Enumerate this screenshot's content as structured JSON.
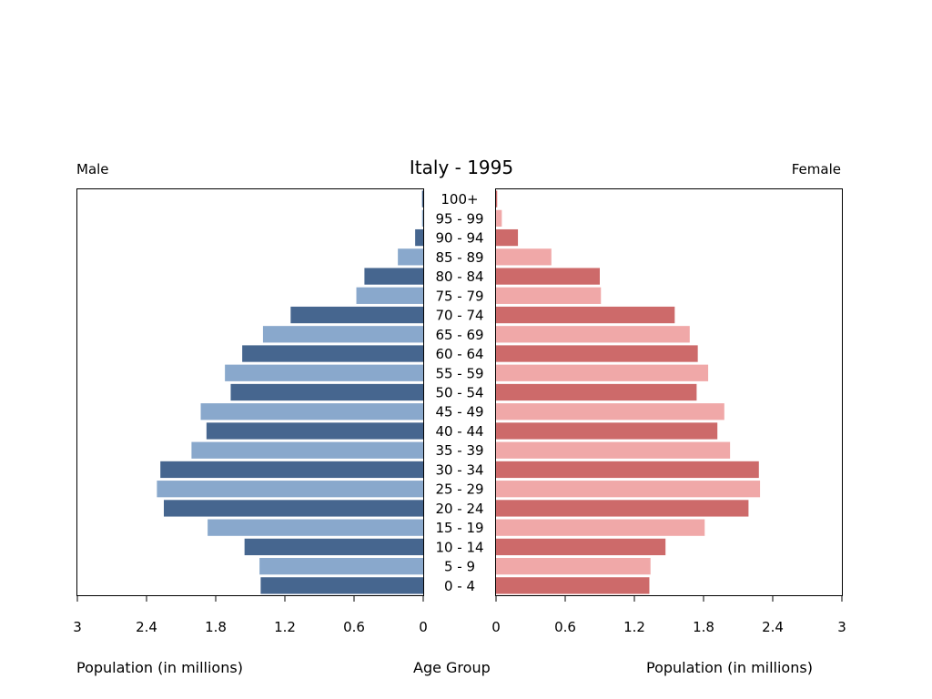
{
  "chart_data": {
    "type": "bar",
    "title": "Italy - 1995",
    "left_label": "Male",
    "right_label": "Female",
    "xlabel_left": "Population (in millions)",
    "xlabel_center": "Age Group",
    "xlabel_right": "Population (in millions)",
    "xlim": [
      0,
      3
    ],
    "ticks": [
      3,
      2.4,
      1.8,
      1.2,
      0.6,
      0
    ],
    "tick_labels_left": [
      "3",
      "2.4",
      "1.8",
      "1.2",
      "0.6",
      "0"
    ],
    "tick_labels_right": [
      "0",
      "0.6",
      "1.2",
      "1.8",
      "2.4",
      "3"
    ],
    "categories": [
      "0 - 4",
      "5 - 9",
      "10 - 14",
      "15 - 19",
      "20 - 24",
      "25 - 29",
      "30 - 34",
      "35 - 39",
      "40 - 44",
      "45 - 49",
      "50 - 54",
      "55 - 59",
      "60 - 64",
      "65 - 69",
      "70 - 74",
      "75 - 79",
      "80 - 84",
      "85 - 89",
      "90 - 94",
      "95 - 99",
      "100+"
    ],
    "series": [
      {
        "name": "Male",
        "values": [
          1.41,
          1.42,
          1.55,
          1.87,
          2.25,
          2.31,
          2.28,
          2.01,
          1.88,
          1.93,
          1.67,
          1.72,
          1.57,
          1.39,
          1.15,
          0.58,
          0.51,
          0.22,
          0.07,
          0.01,
          0.01
        ]
      },
      {
        "name": "Female",
        "values": [
          1.33,
          1.34,
          1.47,
          1.81,
          2.19,
          2.29,
          2.28,
          2.03,
          1.92,
          1.98,
          1.74,
          1.84,
          1.75,
          1.68,
          1.55,
          0.91,
          0.9,
          0.48,
          0.19,
          0.05,
          0.01
        ]
      }
    ],
    "colors": {
      "male_dark": "#46668f",
      "male_light": "#89a8cc",
      "female_dark": "#cd6a6a",
      "female_light": "#f0a8a8"
    }
  }
}
